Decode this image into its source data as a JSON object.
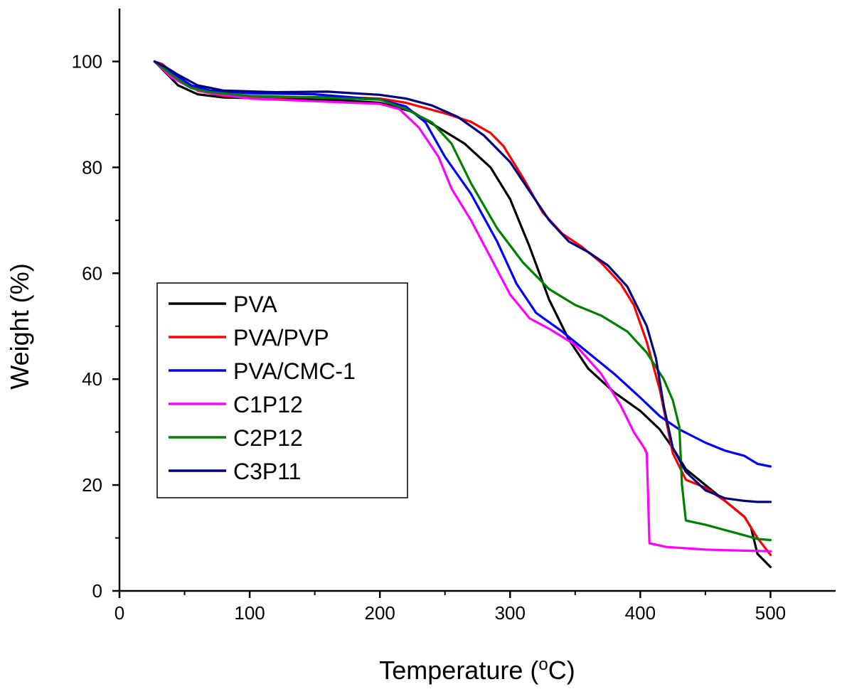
{
  "chart_data": {
    "type": "line",
    "title": "",
    "xlabel_main": "Temperature (",
    "xlabel_sup": "o",
    "xlabel_end": "C)",
    "ylabel": "Weight (%)",
    "xlim": [
      0,
      550
    ],
    "ylim": [
      0,
      110
    ],
    "xticks": [
      0,
      100,
      200,
      300,
      400,
      500
    ],
    "yticks": [
      0,
      20,
      40,
      60,
      80,
      100
    ],
    "xtick_labels": [
      "0",
      "100",
      "200",
      "300",
      "400",
      "500"
    ],
    "ytick_labels": [
      "0",
      "20",
      "40",
      "60",
      "80",
      "100"
    ],
    "legend_position": "center-left",
    "series": [
      {
        "name": "PVA",
        "color": "#000000",
        "points": [
          [
            27,
            100
          ],
          [
            35,
            98
          ],
          [
            45,
            95.5
          ],
          [
            60,
            93.8
          ],
          [
            80,
            93.2
          ],
          [
            120,
            93.0
          ],
          [
            160,
            92.8
          ],
          [
            200,
            92.2
          ],
          [
            225,
            90.5
          ],
          [
            245,
            87.5
          ],
          [
            265,
            84.5
          ],
          [
            285,
            80
          ],
          [
            300,
            74
          ],
          [
            315,
            65
          ],
          [
            330,
            55
          ],
          [
            345,
            47.5
          ],
          [
            360,
            42
          ],
          [
            380,
            37.5
          ],
          [
            400,
            34
          ],
          [
            415,
            30.5
          ],
          [
            425,
            27
          ],
          [
            435,
            23
          ],
          [
            450,
            20
          ],
          [
            465,
            17
          ],
          [
            480,
            14
          ],
          [
            485,
            12
          ],
          [
            490,
            7
          ],
          [
            500,
            4.5
          ]
        ]
      },
      {
        "name": "PVA/PVP",
        "color": "#ff0000",
        "points": [
          [
            27,
            100
          ],
          [
            33,
            99.5
          ],
          [
            45,
            97
          ],
          [
            60,
            94.5
          ],
          [
            80,
            93.5
          ],
          [
            120,
            93.2
          ],
          [
            160,
            93.3
          ],
          [
            200,
            93
          ],
          [
            220,
            92.2
          ],
          [
            250,
            90.2
          ],
          [
            270,
            88.6
          ],
          [
            285,
            86.5
          ],
          [
            295,
            84
          ],
          [
            310,
            78
          ],
          [
            325,
            71.5
          ],
          [
            340,
            67.5
          ],
          [
            355,
            65
          ],
          [
            370,
            62
          ],
          [
            385,
            58
          ],
          [
            395,
            54
          ],
          [
            405,
            47
          ],
          [
            415,
            38
          ],
          [
            425,
            26
          ],
          [
            435,
            21
          ],
          [
            450,
            19.5
          ],
          [
            465,
            17
          ],
          [
            480,
            14
          ],
          [
            490,
            10
          ],
          [
            500,
            6.8
          ]
        ]
      },
      {
        "name": "PVA/CMC-1",
        "color": "#0000ff",
        "points": [
          [
            27,
            100
          ],
          [
            40,
            98
          ],
          [
            55,
            95.5
          ],
          [
            70,
            94.5
          ],
          [
            100,
            94
          ],
          [
            150,
            93.8
          ],
          [
            200,
            92.8
          ],
          [
            220,
            91.5
          ],
          [
            235,
            88.5
          ],
          [
            250,
            82
          ],
          [
            270,
            75
          ],
          [
            290,
            66
          ],
          [
            305,
            58
          ],
          [
            320,
            52.5
          ],
          [
            340,
            49
          ],
          [
            360,
            45
          ],
          [
            380,
            41
          ],
          [
            400,
            36.5
          ],
          [
            415,
            33
          ],
          [
            430,
            30.5
          ],
          [
            450,
            28
          ],
          [
            465,
            26.5
          ],
          [
            480,
            25.5
          ],
          [
            490,
            24
          ],
          [
            500,
            23.5
          ]
        ]
      },
      {
        "name": "C1P12",
        "color": "#ff00ff",
        "points": [
          [
            27,
            100
          ],
          [
            40,
            97
          ],
          [
            55,
            95
          ],
          [
            70,
            94
          ],
          [
            100,
            93
          ],
          [
            150,
            92.5
          ],
          [
            200,
            92
          ],
          [
            215,
            91
          ],
          [
            230,
            87.5
          ],
          [
            245,
            82
          ],
          [
            255,
            76
          ],
          [
            270,
            70
          ],
          [
            285,
            63
          ],
          [
            300,
            56
          ],
          [
            315,
            51.5
          ],
          [
            330,
            49.5
          ],
          [
            350,
            46.5
          ],
          [
            370,
            41
          ],
          [
            385,
            35
          ],
          [
            395,
            30
          ],
          [
            403,
            27
          ],
          [
            405,
            26
          ],
          [
            406,
            18
          ],
          [
            407,
            9
          ],
          [
            420,
            8.3
          ],
          [
            450,
            7.8
          ],
          [
            480,
            7.6
          ],
          [
            500,
            7.5
          ]
        ]
      },
      {
        "name": "C2P12",
        "color": "#008000",
        "points": [
          [
            27,
            100
          ],
          [
            40,
            97.5
          ],
          [
            55,
            95
          ],
          [
            70,
            94.2
          ],
          [
            100,
            93.5
          ],
          [
            150,
            93.2
          ],
          [
            200,
            92.8
          ],
          [
            220,
            91
          ],
          [
            240,
            88.5
          ],
          [
            255,
            84.5
          ],
          [
            270,
            77
          ],
          [
            290,
            68.5
          ],
          [
            310,
            62
          ],
          [
            330,
            57
          ],
          [
            350,
            54
          ],
          [
            370,
            52
          ],
          [
            390,
            49
          ],
          [
            405,
            45
          ],
          [
            418,
            40
          ],
          [
            425,
            36
          ],
          [
            430,
            31
          ],
          [
            432,
            20
          ],
          [
            435,
            13.3
          ],
          [
            450,
            12.5
          ],
          [
            465,
            11.5
          ],
          [
            480,
            10.5
          ],
          [
            490,
            9.8
          ],
          [
            500,
            9.6
          ]
        ]
      },
      {
        "name": "C3P11",
        "color": "#000080",
        "points": [
          [
            27,
            100
          ],
          [
            35,
            99
          ],
          [
            45,
            97.5
          ],
          [
            60,
            95.5
          ],
          [
            80,
            94.5
          ],
          [
            120,
            94.2
          ],
          [
            160,
            94.3
          ],
          [
            200,
            93.7
          ],
          [
            220,
            93
          ],
          [
            240,
            91.7
          ],
          [
            260,
            89.5
          ],
          [
            280,
            86
          ],
          [
            300,
            81
          ],
          [
            315,
            75.5
          ],
          [
            330,
            70
          ],
          [
            345,
            66
          ],
          [
            360,
            64
          ],
          [
            375,
            61.5
          ],
          [
            390,
            57.5
          ],
          [
            405,
            50
          ],
          [
            412,
            44
          ],
          [
            418,
            35
          ],
          [
            425,
            27
          ],
          [
            435,
            22.5
          ],
          [
            450,
            19
          ],
          [
            465,
            17.5
          ],
          [
            480,
            17
          ],
          [
            490,
            16.8
          ],
          [
            500,
            16.8
          ]
        ]
      }
    ]
  }
}
